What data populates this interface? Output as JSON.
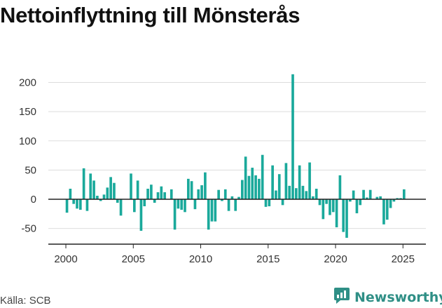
{
  "title": "Nettoinflyttning till Mönsterås",
  "source": "Källa: SCB",
  "brand": {
    "name": "Newsworthy",
    "icon": "newsworthy-logo-icon",
    "color": "#2f8f86"
  },
  "colors": {
    "bar": "#1aa99b",
    "zero_line": "#222222",
    "grid": "#dddddd"
  },
  "chart_data": {
    "type": "bar",
    "xlabel": "",
    "ylabel": "",
    "grid": true,
    "ylim": [
      -60,
      220
    ],
    "xlim": [
      1998.7,
      2026.7
    ],
    "y_ticks": [
      200,
      150,
      100,
      50,
      0,
      -50
    ],
    "x_ticks": [
      2000,
      2005,
      2010,
      2015,
      2020,
      2025
    ],
    "series": [
      {
        "x": [
          2000.08,
          2000.33,
          2000.58,
          2000.83,
          2001.08,
          2001.33,
          2001.58,
          2001.83,
          2002.08,
          2002.33,
          2002.58,
          2002.83,
          2003.08,
          2003.33,
          2003.58,
          2003.83,
          2004.08,
          2004.33,
          2004.58,
          2004.83,
          2005.08,
          2005.33,
          2005.58,
          2005.83,
          2006.08,
          2006.33,
          2006.58,
          2006.83,
          2007.08,
          2007.33,
          2007.58,
          2007.83,
          2008.08,
          2008.33,
          2008.58,
          2008.83,
          2009.08,
          2009.33,
          2009.58,
          2009.83,
          2010.08,
          2010.33,
          2010.58,
          2010.83,
          2011.08,
          2011.33,
          2011.58,
          2011.83,
          2012.08,
          2012.33,
          2012.58,
          2012.83,
          2013.08,
          2013.33,
          2013.58,
          2013.83,
          2014.08,
          2014.33,
          2014.58,
          2014.83,
          2015.08,
          2015.33,
          2015.58,
          2015.83,
          2016.08,
          2016.33,
          2016.58,
          2016.83,
          2017.08,
          2017.33,
          2017.58,
          2017.83,
          2018.08,
          2018.33,
          2018.58,
          2018.83,
          2019.08,
          2019.33,
          2019.58,
          2019.83,
          2020.08,
          2020.33,
          2020.58,
          2020.83,
          2021.08,
          2021.33,
          2021.58,
          2021.83,
          2022.08,
          2022.33,
          2022.58,
          2022.83,
          2023.08,
          2023.33,
          2023.58,
          2023.83,
          2024.08,
          2024.33,
          2024.58,
          2024.83,
          2025.08
        ],
        "values": [
          -23,
          18,
          -8,
          -16,
          -18,
          53,
          -20,
          44,
          32,
          6,
          -3,
          8,
          20,
          38,
          28,
          -6,
          -28,
          0,
          0,
          44,
          -22,
          32,
          -54,
          -12,
          18,
          25,
          -6,
          12,
          22,
          12,
          0,
          17,
          -52,
          -16,
          -18,
          -22,
          35,
          31,
          -17,
          17,
          24,
          46,
          -52,
          -38,
          -38,
          16,
          -3,
          17,
          -20,
          5,
          -20,
          4,
          33,
          73,
          40,
          54,
          41,
          35,
          76,
          -13,
          -12,
          58,
          15,
          43,
          -10,
          62,
          23,
          214,
          19,
          58,
          23,
          14,
          63,
          5,
          18,
          -10,
          -34,
          -8,
          -27,
          -22,
          -48,
          41,
          -56,
          -66,
          -4,
          15,
          -24,
          -10,
          16,
          3,
          16,
          0,
          4,
          5,
          -43,
          -35,
          -15,
          -4,
          2,
          2,
          17
        ]
      }
    ]
  }
}
